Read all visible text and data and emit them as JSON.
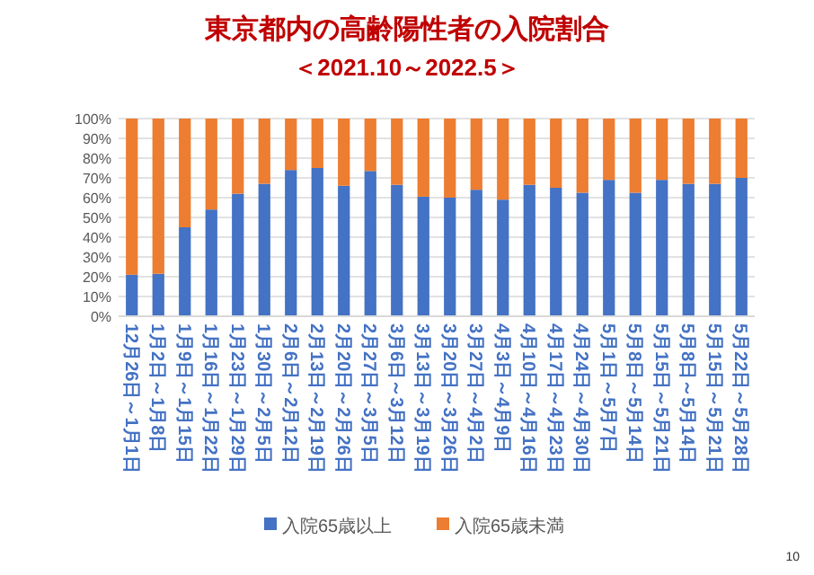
{
  "chart_data": {
    "type": "bar",
    "title": "東京都内の高齢陽性者の入院割合",
    "subtitle": "＜2021.10～2022.5＞",
    "categories": [
      "12月26日～1月1日",
      "1月2日～1月8日",
      "1月9日～1月15日",
      "1月16日～1月22日",
      "1月23日～1月29日",
      "1月30日～2月5日",
      "2月6日～2月12日",
      "2月13日～2月19日",
      "2月20日～2月26日",
      "2月27日～3月5日",
      "3月6日～3月12日",
      "3月13日～3月19日",
      "3月20日～3月26日",
      "3月27日～4月2日",
      "4月3日～4月9日",
      "4月10日～4月16日",
      "4月17日～4月23日",
      "4月24日～4月30日",
      "5月1日～5月7日",
      "5月8日～5月14日",
      "5月15日～5月21日",
      "5月8日～5月14日",
      "5月15日～5月21日",
      "5月22日～5月28日"
    ],
    "stacked": true,
    "series": [
      {
        "name": "入院65歳以上",
        "color": "#4472c4",
        "values": [
          21,
          21.5,
          45,
          54,
          62,
          67,
          74,
          75,
          66,
          73.5,
          66.5,
          60.5,
          60,
          64,
          59,
          66.5,
          65,
          62.5,
          69,
          62.5,
          69,
          67,
          67,
          70
        ]
      },
      {
        "name": "入院65歳未満",
        "color": "#ed7d31",
        "values": [
          79,
          78.5,
          55,
          46,
          38,
          33,
          26,
          25,
          34,
          26.5,
          33.5,
          39.5,
          40,
          36,
          41,
          33.5,
          35,
          37.5,
          31,
          37.5,
          31,
          33,
          33,
          30
        ]
      }
    ],
    "ylim": [
      0,
      100
    ],
    "yticks": [
      {
        "value": 0,
        "label": "0%"
      },
      {
        "value": 10,
        "label": "10%"
      },
      {
        "value": 20,
        "label": "20%"
      },
      {
        "value": 30,
        "label": "30%"
      },
      {
        "value": 40,
        "label": "40%"
      },
      {
        "value": 50,
        "label": "50%"
      },
      {
        "value": 60,
        "label": "60%"
      },
      {
        "value": 70,
        "label": "70%"
      },
      {
        "value": 80,
        "label": "80%"
      },
      {
        "value": 90,
        "label": "90%"
      },
      {
        "value": 100,
        "label": "100%"
      }
    ],
    "grid": "y",
    "legend": "bottom",
    "annotations": [
      "10"
    ]
  }
}
